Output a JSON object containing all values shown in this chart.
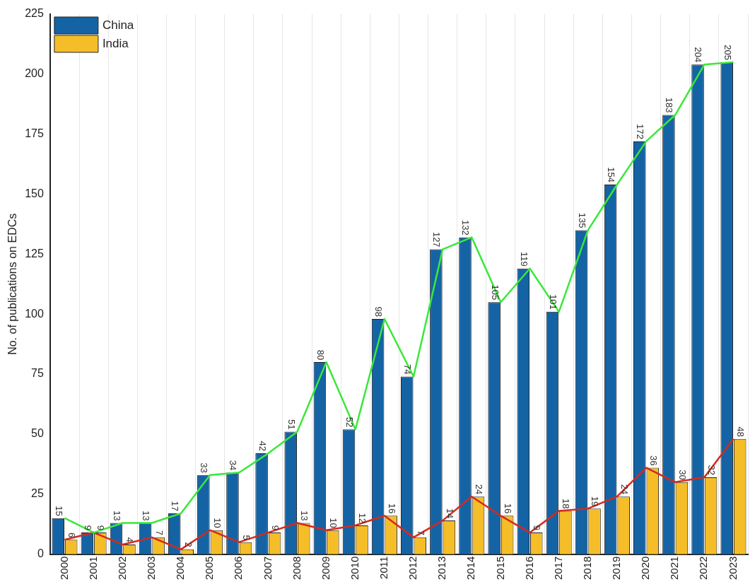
{
  "chart_data": {
    "type": "bar",
    "ylabel": "No. of publications on EDCs",
    "categories": [
      "2000",
      "2001",
      "2002",
      "2003",
      "2004",
      "2005",
      "2006",
      "2007",
      "2008",
      "2009",
      "2010",
      "2011",
      "2012",
      "2013",
      "2014",
      "2015",
      "2016",
      "2017",
      "2018",
      "2019",
      "2020",
      "2021",
      "2022",
      "2023"
    ],
    "series": [
      {
        "name": "China",
        "color": "#1464a5",
        "values": [
          15,
          9,
          13,
          13,
          17,
          33,
          34,
          42,
          51,
          80,
          52,
          98,
          74,
          127,
          132,
          105,
          119,
          101,
          135,
          154,
          172,
          183,
          204,
          205
        ],
        "value_labels": [
          "15",
          "9",
          "13",
          "13",
          "17",
          "33",
          "34",
          "42",
          "51",
          "80",
          "52",
          "98",
          "74",
          "127",
          "132",
          "105",
          "119",
          "101",
          "135",
          "154",
          "172",
          "183",
          "204",
          "205"
        ]
      },
      {
        "name": "India",
        "color": "#f5be28",
        "values": [
          6,
          9,
          4,
          7,
          2,
          10,
          5,
          9,
          13,
          10,
          12,
          16,
          7,
          14,
          24,
          16,
          9,
          18,
          19,
          24,
          36,
          30,
          32,
          48
        ],
        "value_labels": [
          "6",
          "9",
          "4",
          "7",
          "2",
          "10",
          "5",
          "9",
          "13",
          "10",
          "12",
          "16",
          "7",
          "14",
          "24",
          "16",
          "9",
          "18",
          "19",
          "24",
          "36",
          "30",
          "32",
          "48"
        ]
      },
      {
        "type": "line",
        "color": "#3ae83a",
        "values": [
          15,
          9,
          13,
          13,
          17,
          33,
          34,
          42,
          51,
          80,
          52,
          98,
          74,
          127,
          132,
          105,
          119,
          101,
          135,
          154,
          172,
          183,
          204,
          205
        ]
      },
      {
        "type": "line",
        "color": "#d42a1e",
        "values": [
          6,
          9,
          4,
          7,
          2,
          10,
          5,
          9,
          13,
          10,
          12,
          16,
          7,
          14,
          24,
          16,
          9,
          18,
          19,
          24,
          36,
          30,
          32,
          48
        ]
      }
    ],
    "ylim": [
      0,
      225
    ],
    "yticks": [
      0,
      25,
      50,
      75,
      100,
      125,
      150,
      175,
      200,
      225
    ],
    "grid": "x",
    "legend": "top left",
    "marker": "none"
  }
}
